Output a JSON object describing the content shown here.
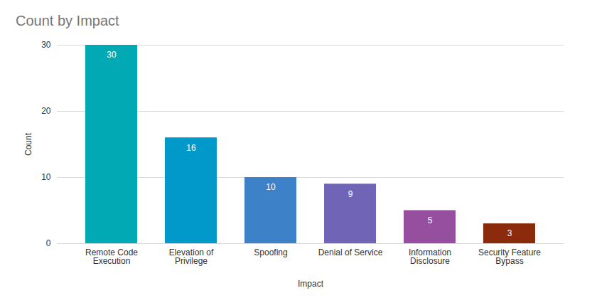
{
  "chart_data": {
    "type": "bar",
    "title": "Count by Impact",
    "x_label": "Impact",
    "y_label": "Count",
    "categories": [
      "Remote Code Execution",
      "Elevation of Privilege",
      "Spoofing",
      "Denial of Service",
      "Information Disclosure",
      "Security Feature Bypass"
    ],
    "values": [
      30,
      16,
      10,
      9,
      5,
      3
    ],
    "colors": [
      "#00a9b4",
      "#0099c9",
      "#3d82c8",
      "#7064b6",
      "#954f9e",
      "#8c2b0b"
    ],
    "ylim": [
      0,
      30
    ],
    "yticks": [
      0,
      10,
      20,
      30
    ],
    "grid": true,
    "data_labels": true
  }
}
